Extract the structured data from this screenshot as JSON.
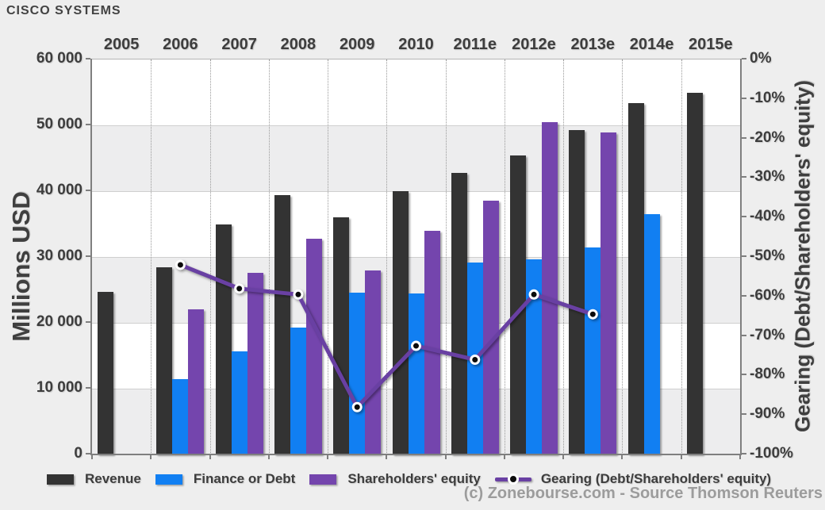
{
  "title": "CISCO SYSTEMS",
  "footer": "(c) Zonebourse.com - Source Thomson Reuters",
  "colors": {
    "background": "#eeeeee",
    "plot_background": "#ffffff",
    "band_stripe": "#ededee",
    "revenue_bar": "#333333",
    "debt_bar": "#117ff2",
    "equity_bar": "#7445ad",
    "gearing_line": "#6940a3",
    "gearing_dot": "#0b0b0b",
    "grid_line": "#cfcfcf",
    "axis_spine": "#7f7f7f",
    "footer_text": "#9c9c9c"
  },
  "chart_data": {
    "type": "bar",
    "subtype": "grouped bars with overlaid line on secondary axis",
    "categories": [
      "2005",
      "2006",
      "2007",
      "2008",
      "2009",
      "2010",
      "2011e",
      "2012e",
      "2013e",
      "2014e",
      "2015e"
    ],
    "series": [
      {
        "name": "Revenue",
        "type": "bar",
        "axis": "left",
        "color": "#333333",
        "values": [
          24700,
          28400,
          34900,
          39400,
          36000,
          40000,
          42800,
          45400,
          49300,
          53400,
          55000
        ]
      },
      {
        "name": "Finance or Debt",
        "type": "bar",
        "axis": "left",
        "color": "#117ff2",
        "values": [
          null,
          11400,
          15700,
          19300,
          24600,
          24500,
          29100,
          29700,
          31400,
          36500,
          null
        ]
      },
      {
        "name": "Shareholders' equity",
        "type": "bar",
        "axis": "left",
        "color": "#7445ad",
        "values": [
          null,
          22000,
          27600,
          32800,
          28000,
          34000,
          38500,
          50500,
          48900,
          null,
          null
        ]
      },
      {
        "name": "Gearing (Debt/Shareholders' equity)",
        "type": "line",
        "axis": "right",
        "color": "#6940a3",
        "values": [
          null,
          -52,
          -58,
          -59.5,
          -88,
          -72.5,
          -76,
          -59.5,
          -64.5,
          null,
          null
        ]
      }
    ],
    "left_axis": {
      "label": "Millions USD",
      "range": [
        0,
        60000
      ],
      "tick_step": 10000,
      "tick_labels": [
        "60 000",
        "50 000",
        "40 000",
        "30 000",
        "20 000",
        "10 000",
        "0"
      ]
    },
    "right_axis": {
      "label": "Gearing (Debt/Shareholders' equity)",
      "range": [
        -100,
        0
      ],
      "tick_step": 10,
      "tick_labels": [
        "0%",
        "-10%",
        "-20%",
        "-30%",
        "-40%",
        "-50%",
        "-60%",
        "-70%",
        "-80%",
        "-90%",
        "-100%"
      ]
    },
    "grid": {
      "horizontal": true,
      "vertical_separators": "dotted",
      "alternating_bands": true
    },
    "legend_position": "bottom"
  }
}
